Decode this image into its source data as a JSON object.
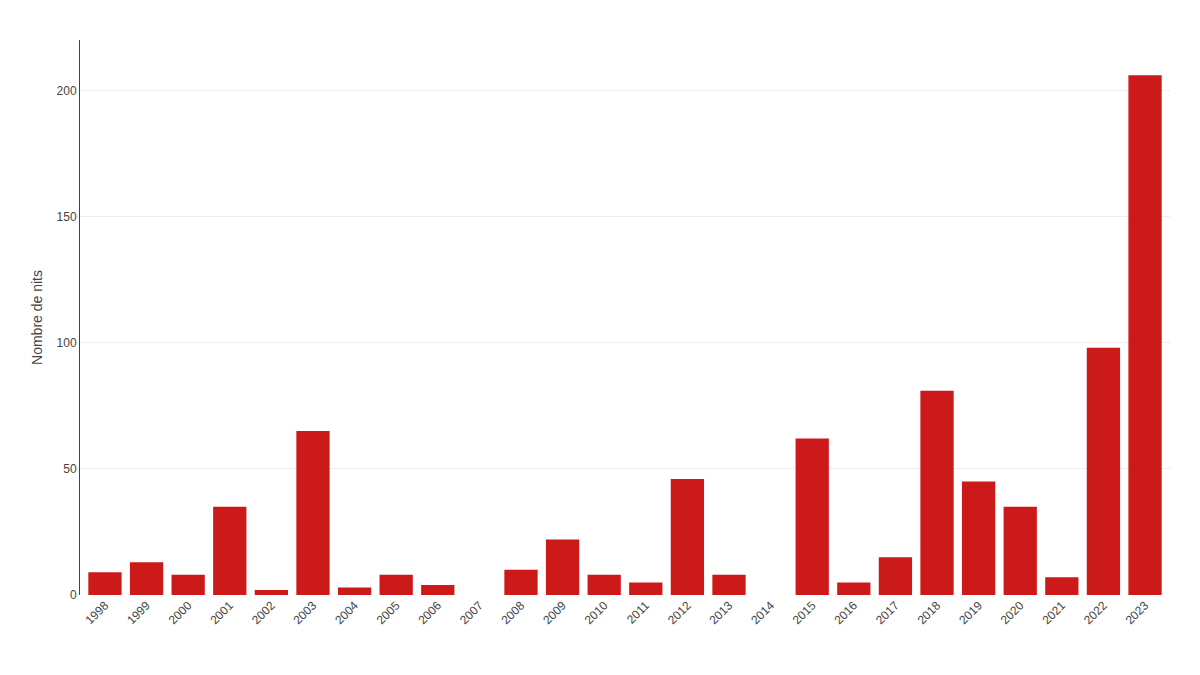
{
  "chart_data": {
    "type": "bar",
    "categories": [
      "1998",
      "1999",
      "2000",
      "2001",
      "2002",
      "2003",
      "2004",
      "2005",
      "2006",
      "2007",
      "2008",
      "2009",
      "2010",
      "2011",
      "2012",
      "2013",
      "2014",
      "2015",
      "2016",
      "2017",
      "2018",
      "2019",
      "2020",
      "2021",
      "2022",
      "2023"
    ],
    "values": [
      9,
      13,
      8,
      35,
      2,
      65,
      3,
      8,
      4,
      0,
      10,
      22,
      8,
      5,
      46,
      8,
      0,
      62,
      5,
      15,
      81,
      45,
      35,
      7,
      98,
      206
    ],
    "color": "#cc1a1a",
    "ylabel": "Nombre de nits",
    "ylim": [
      0,
      220
    ],
    "yticks": [
      0,
      50,
      100,
      150,
      200
    ],
    "grid": true
  }
}
